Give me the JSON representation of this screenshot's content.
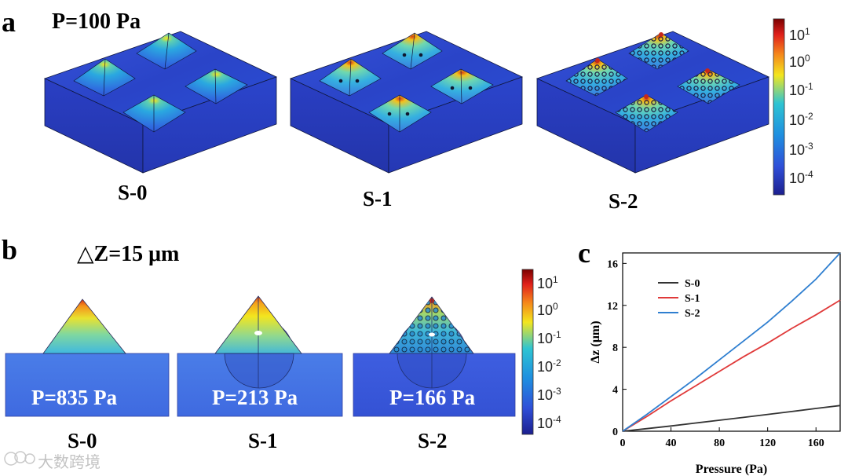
{
  "panel_a": {
    "letter": "a",
    "condition": "P=100 Pa",
    "samples": [
      "S-0",
      "S-1",
      "S-2"
    ]
  },
  "panel_b": {
    "letter": "b",
    "condition": "△Z=15 μm",
    "samples": [
      "S-0",
      "S-1",
      "S-2"
    ],
    "pressures": [
      "P=835 Pa",
      "P=213 Pa",
      "P=166 Pa"
    ]
  },
  "colorbar": {
    "base": "10",
    "exponents": [
      "1",
      "0",
      "-1",
      "-2",
      "-3",
      "-4"
    ],
    "colors": {
      "top": "#8b0000",
      "red": "#e0201b",
      "yellow": "#f3e61e",
      "cyan": "#2ec4d2",
      "blue": "#2f4fd8",
      "bottom": "#1c1f8f"
    }
  },
  "chart_data": {
    "type": "line",
    "panel_letter": "c",
    "title": "",
    "xlabel": "Pressure (Pa)",
    "ylabel": "Δz (μm)",
    "xlim": [
      0,
      180
    ],
    "ylim": [
      0,
      17
    ],
    "xticks": [
      0,
      40,
      80,
      120,
      160
    ],
    "yticks": [
      0,
      4,
      8,
      12,
      16
    ],
    "legend_position": "top-left",
    "series": [
      {
        "name": "S-0",
        "color": "#333333",
        "x": [
          0,
          20,
          40,
          60,
          80,
          100,
          120,
          140,
          160,
          180
        ],
        "y": [
          0,
          0.25,
          0.5,
          0.78,
          1.05,
          1.32,
          1.6,
          1.88,
          2.17,
          2.45
        ]
      },
      {
        "name": "S-1",
        "color": "#e03a3a",
        "x": [
          0,
          20,
          40,
          60,
          80,
          100,
          120,
          140,
          160,
          180
        ],
        "y": [
          0,
          1.4,
          2.9,
          4.3,
          5.7,
          7.1,
          8.4,
          9.8,
          11.1,
          12.5
        ]
      },
      {
        "name": "S-2",
        "color": "#2f7fd0",
        "x": [
          0,
          20,
          40,
          60,
          80,
          100,
          120,
          140,
          160,
          180
        ],
        "y": [
          0,
          1.6,
          3.3,
          5.0,
          6.8,
          8.6,
          10.4,
          12.4,
          14.5,
          17.0
        ]
      }
    ]
  },
  "watermark": "大数跨境"
}
